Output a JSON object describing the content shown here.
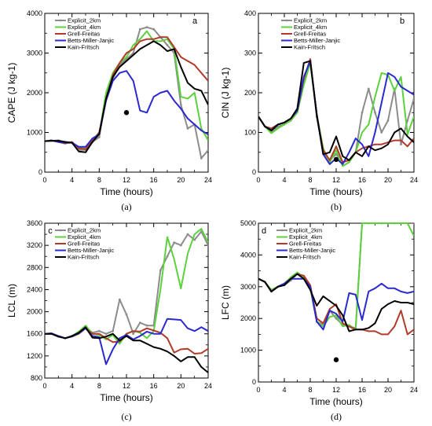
{
  "series_styles": [
    {
      "name": "Explicit_2km",
      "color": "#8c8c8c",
      "marker": "circle"
    },
    {
      "name": "Explicit_4km",
      "color": "#5bd23b",
      "marker": "none"
    },
    {
      "name": "Grell-Freitas",
      "color": "#b23a2a",
      "marker": "none"
    },
    {
      "name": "Betts-Miller-Janjic",
      "color": "#2a2ad0",
      "marker": "none"
    },
    {
      "name": "Kain-Fritsch",
      "color": "#000000",
      "marker": "none"
    }
  ],
  "chart_data": [
    {
      "type": "line",
      "panel_letter": "a",
      "caption": "(a)",
      "xlabel": "Time (hours)",
      "ylabel": "CAPE (J kg-1)",
      "xlim": [
        0,
        24
      ],
      "ylim": [
        0,
        4000
      ],
      "xticks": [
        "0",
        "4",
        "8",
        "12",
        "16",
        "20",
        "24"
      ],
      "yticks": [
        "0",
        "1000",
        "2000",
        "3000",
        "4000"
      ],
      "legend": "top-left",
      "x": [
        0,
        1,
        2,
        3,
        4,
        5,
        6,
        7,
        8,
        9,
        10,
        11,
        12,
        13,
        14,
        15,
        16,
        17,
        18,
        19,
        20,
        21,
        22,
        23,
        24
      ],
      "series": [
        {
          "name": "Explicit_2km",
          "values": [
            780,
            790,
            800,
            760,
            740,
            560,
            560,
            760,
            880,
            1900,
            2350,
            2700,
            2850,
            3000,
            3600,
            3650,
            3600,
            3400,
            3200,
            3000,
            1700,
            1100,
            1200,
            350,
            550
          ]
        },
        {
          "name": "Explicit_4km",
          "values": [
            780,
            790,
            780,
            760,
            740,
            620,
            600,
            800,
            950,
            2000,
            2500,
            2750,
            2900,
            3200,
            3350,
            3550,
            3300,
            3300,
            3350,
            3100,
            1900,
            1850,
            2000,
            1100,
            800
          ]
        },
        {
          "name": "Grell-Freitas",
          "values": [
            780,
            800,
            760,
            720,
            760,
            600,
            580,
            800,
            1000,
            1800,
            2450,
            2750,
            3000,
            3100,
            3300,
            3350,
            3350,
            3400,
            3400,
            3150,
            2900,
            2800,
            2700,
            2500,
            2300
          ]
        },
        {
          "name": "Betts-Miller-Janjic",
          "values": [
            780,
            800,
            760,
            740,
            740,
            640,
            640,
            850,
            950,
            1800,
            2300,
            2500,
            2550,
            2300,
            1550,
            1500,
            1900,
            2000,
            2050,
            1800,
            1600,
            1350,
            1200,
            1050,
            950
          ]
        },
        {
          "name": "Kain-Fritsch",
          "values": [
            780,
            790,
            790,
            760,
            740,
            520,
            500,
            760,
            960,
            1850,
            2400,
            2650,
            2800,
            2950,
            3100,
            3200,
            3300,
            3200,
            3050,
            3100,
            2650,
            2250,
            2100,
            2050,
            1700
          ]
        }
      ],
      "obs_point": {
        "x": 12,
        "y": 1500
      }
    },
    {
      "type": "line",
      "panel_letter": "b",
      "caption": "(b)",
      "xlabel": "Time (hours)",
      "ylabel": "CIN (J kg-1)",
      "xlim": [
        0,
        24
      ],
      "ylim": [
        0,
        400
      ],
      "xticks": [
        "0",
        "4",
        "8",
        "12",
        "16",
        "20",
        "24"
      ],
      "yticks": [
        "0",
        "100",
        "200",
        "300",
        "400"
      ],
      "legend": "top-center",
      "x": [
        0,
        1,
        2,
        3,
        4,
        5,
        6,
        7,
        8,
        9,
        10,
        11,
        12,
        13,
        14,
        15,
        16,
        17,
        18,
        19,
        20,
        21,
        22,
        23,
        24
      ],
      "series": [
        {
          "name": "Explicit_2km",
          "values": [
            140,
            115,
            100,
            115,
            120,
            130,
            155,
            230,
            280,
            140,
            50,
            30,
            45,
            25,
            30,
            50,
            150,
            210,
            150,
            100,
            130,
            210,
            70,
            130,
            185
          ]
        },
        {
          "name": "Explicit_4km",
          "values": [
            140,
            115,
            98,
            110,
            120,
            130,
            150,
            220,
            275,
            145,
            60,
            25,
            55,
            15,
            25,
            50,
            100,
            120,
            190,
            250,
            245,
            205,
            240,
            95,
            140
          ]
        },
        {
          "name": "Grell-Freitas",
          "values": [
            140,
            115,
            110,
            120,
            125,
            135,
            155,
            235,
            285,
            140,
            55,
            30,
            65,
            25,
            30,
            50,
            60,
            65,
            70,
            70,
            75,
            80,
            80,
            65,
            85
          ]
        },
        {
          "name": "Betts-Miller-Janjic",
          "values": [
            140,
            115,
            105,
            120,
            125,
            135,
            155,
            240,
            280,
            145,
            45,
            20,
            35,
            20,
            50,
            85,
            70,
            40,
            100,
            175,
            250,
            240,
            215,
            205,
            195
          ]
        },
        {
          "name": "Kain-Fritsch",
          "values": [
            140,
            115,
            105,
            120,
            125,
            135,
            160,
            275,
            280,
            145,
            45,
            50,
            90,
            40,
            30,
            50,
            40,
            65,
            55,
            60,
            70,
            100,
            110,
            90,
            75
          ]
        }
      ],
      "obs_point": {
        "x": 12,
        "y": 32
      }
    },
    {
      "type": "line",
      "panel_letter": "c",
      "caption": "(c)",
      "xlabel": "Time (hours)",
      "ylabel": "LCL (m)",
      "xlim": [
        0,
        24
      ],
      "ylim": [
        800,
        3600
      ],
      "xticks": [
        "0",
        "4",
        "8",
        "12",
        "16",
        "20",
        "24"
      ],
      "yticks": [
        "800",
        "1200",
        "1600",
        "2000",
        "2400",
        "2800",
        "3200",
        "3600"
      ],
      "legend": "top-left",
      "x": [
        0,
        1,
        2,
        3,
        4,
        5,
        6,
        7,
        8,
        9,
        10,
        11,
        12,
        13,
        14,
        15,
        16,
        17,
        18,
        19,
        20,
        21,
        22,
        23,
        24
      ],
      "series": [
        {
          "name": "Explicit_2km",
          "values": [
            1600,
            1600,
            1550,
            1520,
            1560,
            1620,
            1720,
            1620,
            1650,
            1600,
            1650,
            2220,
            1950,
            1600,
            1800,
            1750,
            1750,
            2750,
            3000,
            3250,
            3200,
            3400,
            3300,
            3450,
            3200
          ]
        },
        {
          "name": "Explicit_4km",
          "values": [
            1600,
            1600,
            1560,
            1520,
            1560,
            1640,
            1750,
            1600,
            1580,
            1500,
            1580,
            1420,
            1600,
            1650,
            1620,
            1520,
            1650,
            2400,
            3350,
            2950,
            2420,
            3050,
            3400,
            3500,
            3250
          ]
        },
        {
          "name": "Grell-Freitas",
          "values": [
            1600,
            1600,
            1550,
            1520,
            1550,
            1600,
            1700,
            1600,
            1600,
            1520,
            1450,
            1460,
            1600,
            1650,
            1640,
            1700,
            1660,
            1620,
            1520,
            1260,
            1320,
            1330,
            1240,
            1250,
            1330
          ]
        },
        {
          "name": "Betts-Miller-Janjic",
          "values": [
            1600,
            1610,
            1560,
            1520,
            1550,
            1610,
            1700,
            1560,
            1540,
            1050,
            1320,
            1520,
            1580,
            1500,
            1560,
            1640,
            1600,
            1600,
            1870,
            1860,
            1850,
            1700,
            1650,
            1720,
            1650
          ]
        },
        {
          "name": "Kain-Fritsch",
          "values": [
            1600,
            1600,
            1550,
            1520,
            1560,
            1620,
            1720,
            1530,
            1520,
            1550,
            1600,
            1480,
            1560,
            1480,
            1480,
            1420,
            1360,
            1330,
            1280,
            1200,
            1100,
            1180,
            1180,
            1000,
            900
          ]
        }
      ]
    },
    {
      "type": "line",
      "panel_letter": "d",
      "caption": "(d)",
      "xlabel": "Time (hours)",
      "ylabel": "LFC (m)",
      "xlim": [
        0,
        24
      ],
      "ylim": [
        0,
        5000
      ],
      "xticks": [
        "0",
        "4",
        "8",
        "12",
        "16",
        "20",
        "24"
      ],
      "yticks": [
        "0",
        "1000",
        "2000",
        "3000",
        "4000",
        "5000"
      ],
      "legend": "top-left",
      "x": [
        0,
        1,
        2,
        3,
        4,
        5,
        6,
        7,
        8,
        9,
        10,
        11,
        12,
        13,
        14,
        15,
        16,
        17,
        18,
        19,
        20,
        21,
        22,
        23,
        24
      ],
      "series": [
        {
          "name": "Explicit_2km",
          "values": [
            3250,
            3150,
            2850,
            3000,
            3050,
            3200,
            3400,
            3300,
            3000,
            1900,
            1800,
            2250,
            2000,
            1800,
            1750,
            1700,
            5000,
            5000,
            5000,
            5000,
            5000,
            5000,
            5000,
            5000,
            5000
          ]
        },
        {
          "name": "Explicit_4km",
          "values": [
            3250,
            3150,
            2900,
            3000,
            3100,
            3300,
            3450,
            3300,
            2950,
            1900,
            1750,
            2050,
            2100,
            1750,
            1800,
            1650,
            5000,
            5000,
            5000,
            5000,
            5000,
            5000,
            5000,
            5000,
            4600
          ]
        },
        {
          "name": "Grell-Freitas",
          "values": [
            3250,
            3150,
            2850,
            3000,
            3100,
            3250,
            3400,
            3350,
            3050,
            2000,
            1850,
            2300,
            2450,
            1850,
            1750,
            1650,
            1650,
            1600,
            1600,
            1500,
            1500,
            1750,
            2250,
            1500,
            1650
          ]
        },
        {
          "name": "Betts-Miller-Janjic",
          "values": [
            3250,
            3150,
            2850,
            3000,
            3100,
            3250,
            3250,
            3250,
            3000,
            1900,
            1650,
            2250,
            2150,
            1900,
            2800,
            2750,
            1950,
            2850,
            2950,
            3100,
            2950,
            2950,
            2850,
            2800,
            2850
          ]
        },
        {
          "name": "Kain-Fritsch",
          "values": [
            3250,
            3150,
            2850,
            3000,
            3050,
            3250,
            3400,
            3250,
            2900,
            2400,
            2700,
            2550,
            2400,
            2100,
            1600,
            1650,
            1650,
            1700,
            1850,
            2300,
            2450,
            2550,
            2500,
            2500,
            2450
          ]
        }
      ],
      "obs_point": {
        "x": 12,
        "y": 700
      }
    }
  ]
}
